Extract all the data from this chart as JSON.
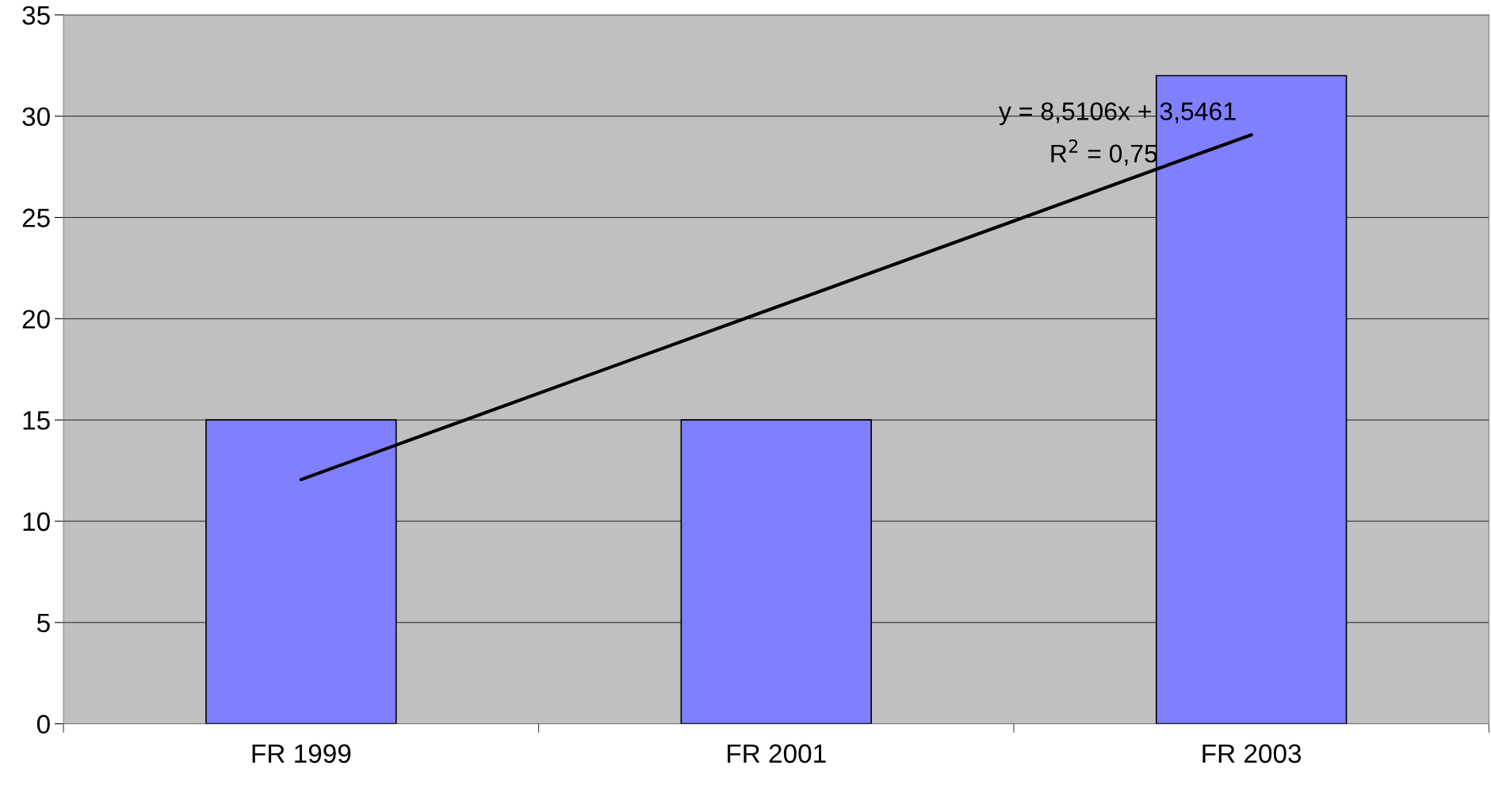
{
  "chart_data": {
    "type": "bar",
    "categories": [
      "FR 1999",
      "FR 2001",
      "FR 2003"
    ],
    "series": [
      {
        "color": "#8080ff",
        "values": [
          15,
          15,
          32
        ]
      },
      {
        "type": "line",
        "color": "#000000",
        "values": [
          12.06,
          20.57,
          29.08
        ]
      }
    ],
    "ylim": [
      0,
      35
    ],
    "yticks": [
      0,
      5,
      10,
      15,
      20,
      25,
      30,
      35
    ],
    "grid": "y",
    "legend": false,
    "annotations": [
      "y = 8,5106x + 3,5461",
      "R$^{2}$ = 0,75"
    ]
  }
}
